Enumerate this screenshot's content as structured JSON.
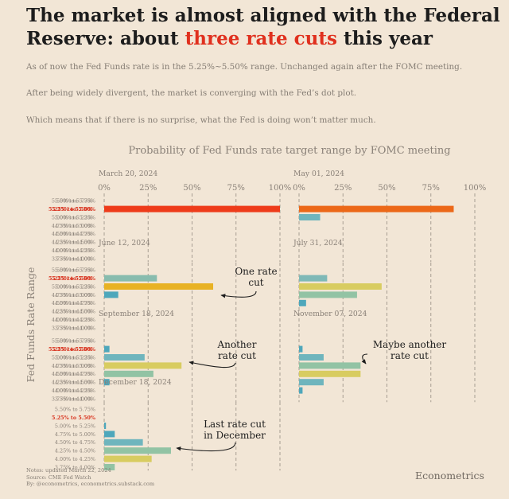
{
  "headline": {
    "part1": "The market is almost aligned with the Federal Reserve: about ",
    "highlight": "three rate cuts",
    "part2": " this year"
  },
  "paragraphs": [
    "As of now the Fed Funds rate is in the 5.25%~5.50% range. Unchanged again after the FOMC meeting.",
    "After being widely divergent, the market is converging with the Fed’s dot plot.",
    "Which means that if there is no surprise, what the Fed is doing won’t matter much."
  ],
  "colors": {
    "background": "#f2e6d6",
    "highlight": "#e0301e",
    "current_range_label": "#d8331f",
    "gridline": "#a79d92",
    "text_muted": "#857d74"
  },
  "chart_data": {
    "type": "bar",
    "orientation": "horizontal",
    "title": "Probability of Fed Funds rate target range by FOMC meeting",
    "ylabel": "Fed Funds Rate Range",
    "xlim": [
      0,
      100
    ],
    "x_ticks": [
      "0%",
      "25%",
      "50%",
      "75%",
      "100%"
    ],
    "current_range": "5.25% to 5.50%",
    "categories": [
      "5.50% to 5.75%",
      "5.25% to 5.50%",
      "5.00% to 5.25%",
      "4.75% to 5.00%",
      "4.50% to 4.75%",
      "4.25% to 4.50%",
      "4.00% to 4.25%",
      "3.75% to 4.00%"
    ],
    "panels": [
      {
        "meeting": "March 20, 2024",
        "values": [
          0,
          100,
          0,
          0,
          0,
          0,
          0,
          0
        ],
        "colors": [
          "#6fb5bd",
          "#ee3b1a",
          "#6fb5bd",
          "#6fb5bd",
          "#6fb5bd",
          "#6fb5bd",
          "#6fb5bd",
          "#6fb5bd"
        ],
        "show_ticks": true
      },
      {
        "meeting": "May 01, 2024",
        "values": [
          0,
          88,
          12,
          0,
          0,
          0,
          0,
          0
        ],
        "colors": [
          "#6fb5bd",
          "#ec6818",
          "#6fb5bd",
          "#6fb5bd",
          "#6fb5bd",
          "#6fb5bd",
          "#6fb5bd",
          "#6fb5bd"
        ],
        "show_ticks": true
      },
      {
        "meeting": "June 12, 2024",
        "values": [
          0,
          30,
          62,
          8,
          0,
          0,
          0,
          0
        ],
        "colors": [
          "#6fb5bd",
          "#88bcae",
          "#e8b224",
          "#4ea7bb",
          "#6fb5bd",
          "#6fb5bd",
          "#6fb5bd",
          "#6fb5bd"
        ],
        "show_ticks": false
      },
      {
        "meeting": "July 31, 2024",
        "values": [
          0,
          16,
          47,
          33,
          4,
          0,
          0,
          0
        ],
        "colors": [
          "#6fb5bd",
          "#7fb9b7",
          "#d8cc60",
          "#92c3a4",
          "#4ea7bb",
          "#6fb5bd",
          "#6fb5bd",
          "#6fb5bd"
        ],
        "show_ticks": false
      },
      {
        "meeting": "September 18, 2024",
        "values": [
          0,
          3,
          23,
          44,
          28,
          3,
          0,
          0
        ],
        "colors": [
          "#6fb5bd",
          "#4ea7bb",
          "#6fb5bd",
          "#d8cc60",
          "#92c3a4",
          "#4ea7bb",
          "#6fb5bd",
          "#6fb5bd"
        ],
        "show_ticks": false
      },
      {
        "meeting": "November 07, 2024",
        "values": [
          0,
          2,
          14,
          35,
          35,
          14,
          2,
          0
        ],
        "colors": [
          "#6fb5bd",
          "#4ea7bb",
          "#6fb5bd",
          "#92c3a4",
          "#d8cc60",
          "#6fb5bd",
          "#4ea7bb",
          "#6fb5bd"
        ],
        "show_ticks": false
      },
      {
        "meeting": "December 18, 2024",
        "values": [
          0,
          0,
          1,
          6,
          22,
          38,
          27,
          6
        ],
        "colors": [
          "#6fb5bd",
          "#4ea7bb",
          "#4ea7bb",
          "#4ea7bb",
          "#6fb5bd",
          "#92c3a4",
          "#d8cc60",
          "#92c3a4"
        ],
        "show_ticks": false
      }
    ],
    "annotations": [
      {
        "text": "One rate\ncut",
        "panel": 2
      },
      {
        "text": "Another\nrate cut",
        "panel": 4
      },
      {
        "text": "Maybe another\nrate cut",
        "panel": 5
      },
      {
        "text": "Last rate cut\nin December",
        "panel": 6
      }
    ]
  },
  "notes": [
    "Notes: updated March 22, 2024",
    "Source: CME Fed Watch",
    "By: @econometrics, econometrics.substack.com"
  ],
  "brand": "Econometrics"
}
